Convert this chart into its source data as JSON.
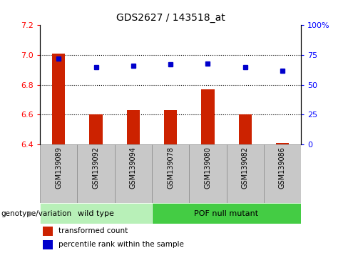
{
  "title": "GDS2627 / 143518_at",
  "samples": [
    "GSM139089",
    "GSM139092",
    "GSM139094",
    "GSM139078",
    "GSM139080",
    "GSM139082",
    "GSM139086"
  ],
  "red_values": [
    7.01,
    6.6,
    6.63,
    6.63,
    6.77,
    6.6,
    6.41
  ],
  "blue_values": [
    72,
    65,
    66,
    67,
    68,
    65,
    62
  ],
  "red_base": 6.4,
  "ylim_left": [
    6.4,
    7.2
  ],
  "ylim_right": [
    0,
    100
  ],
  "yticks_left": [
    6.4,
    6.6,
    6.8,
    7.0,
    7.2
  ],
  "yticks_right": [
    0,
    25,
    50,
    75,
    100
  ],
  "ytick_labels_right": [
    "0",
    "25",
    "50",
    "75",
    "100%"
  ],
  "hlines": [
    7.0,
    6.8,
    6.6
  ],
  "wild_type_count": 3,
  "bar_color": "#cc2200",
  "dot_color": "#0000cc",
  "legend_red_label": "transformed count",
  "legend_blue_label": "percentile rank within the sample",
  "genotype_label": "genotype/variation",
  "wild_type_color": "#b8f0b8",
  "pof_color": "#44cc44",
  "sample_bg_color": "#c8c8c8",
  "sample_divider_color": "#888888"
}
